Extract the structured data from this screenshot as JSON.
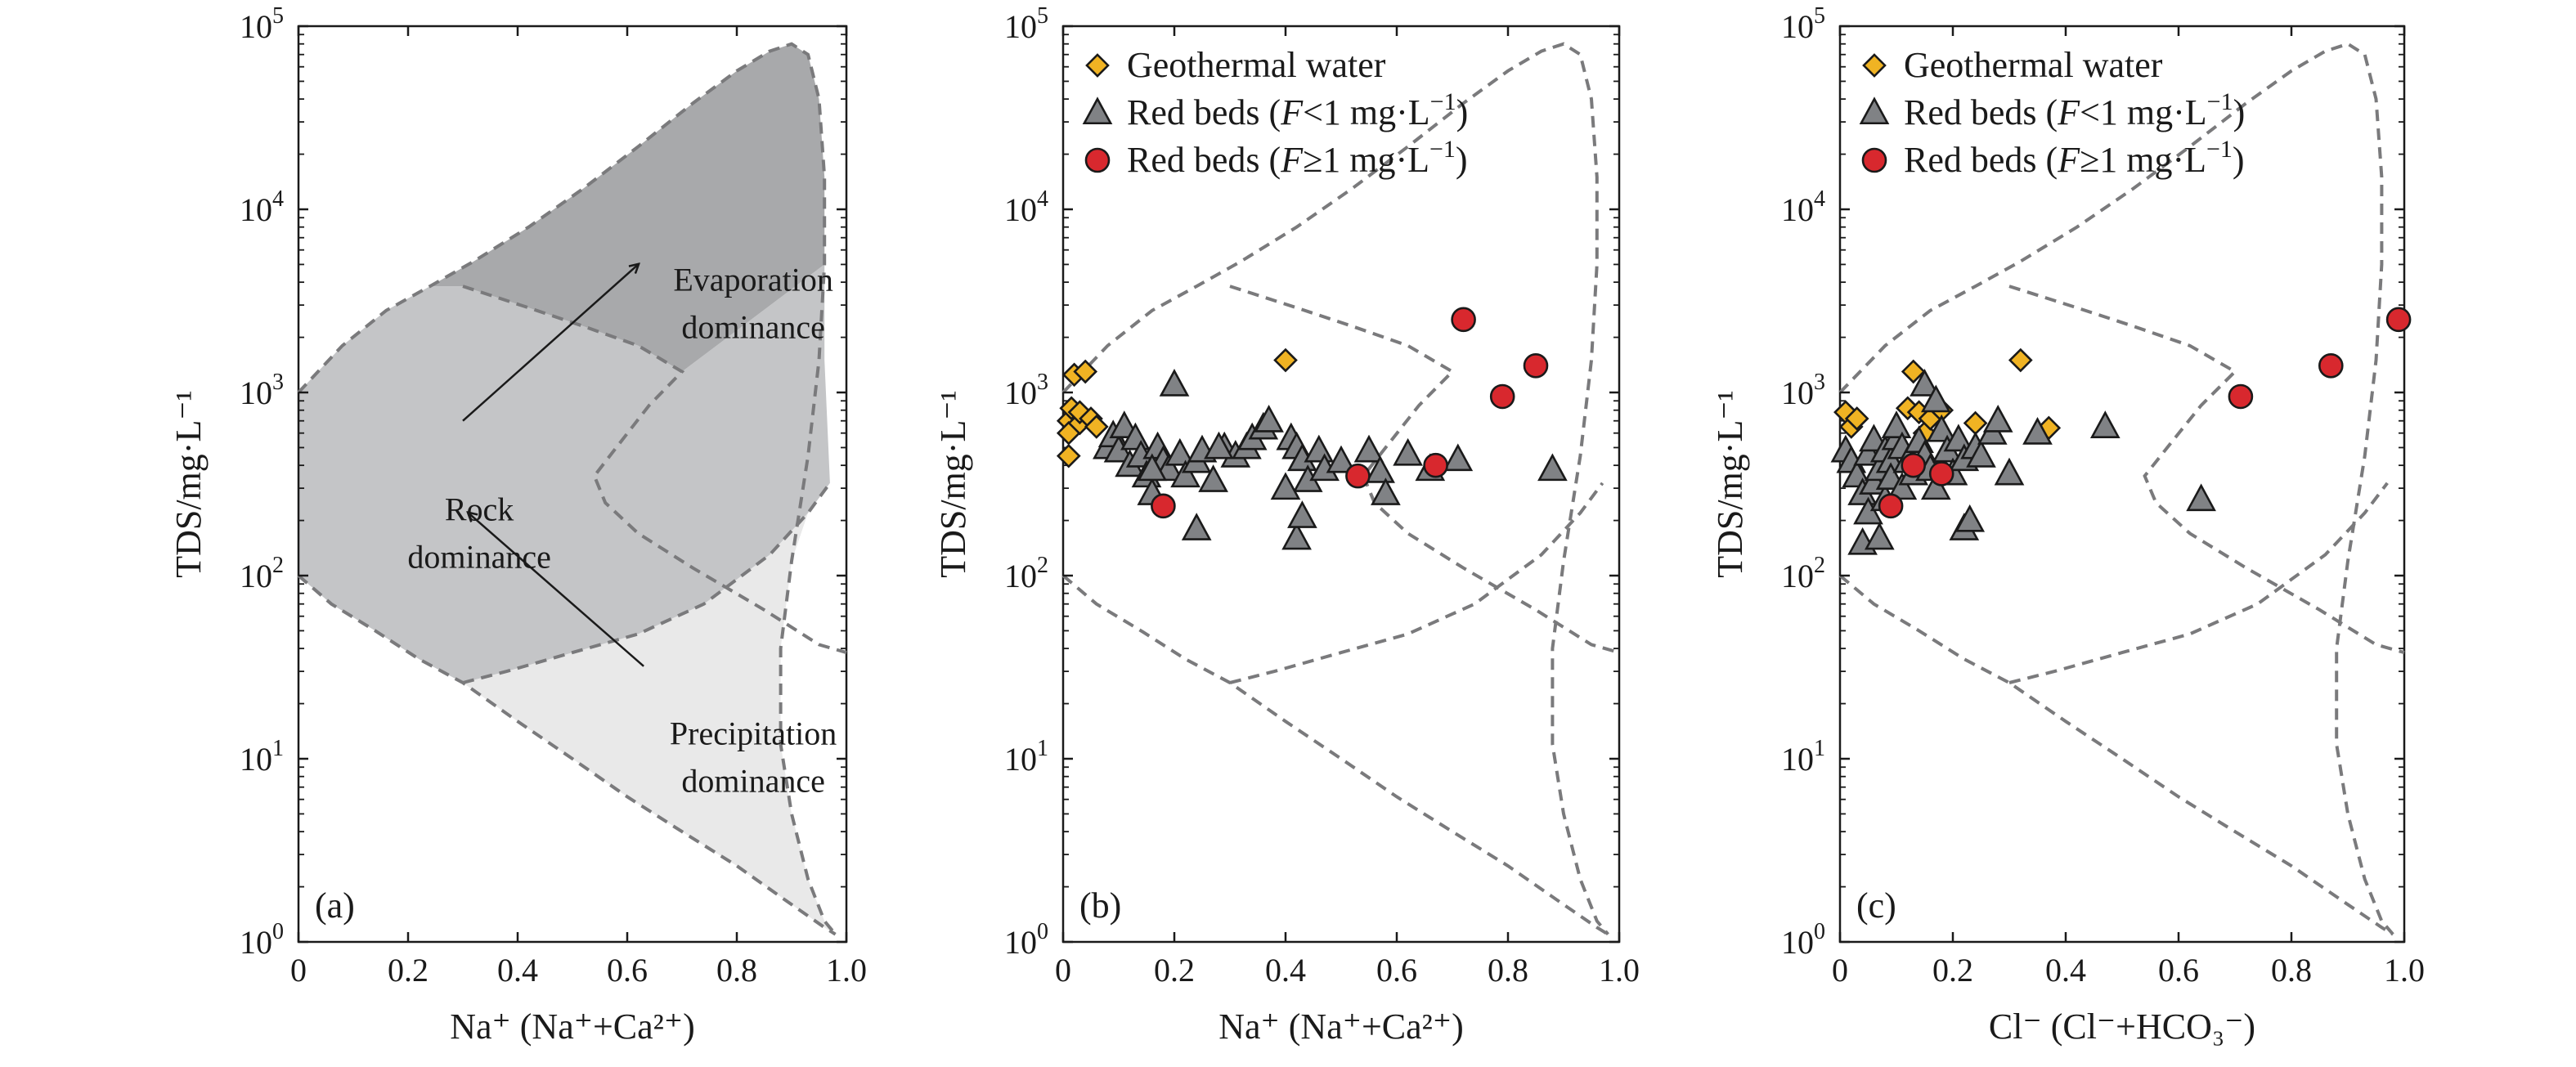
{
  "chart_data": [
    {
      "panel": "a",
      "panel_label": "(a)",
      "type": "area",
      "xlabel": "Na⁺ (Na⁺+Ca²⁺)",
      "ylabel": "TDS/mg·L⁻¹",
      "xlim": [
        0,
        1.0
      ],
      "ylim_log10": [
        0,
        5
      ],
      "x_ticks": [
        "0",
        "0.2",
        "0.4",
        "0.6",
        "0.8",
        "1.0"
      ],
      "y_ticks": [
        {
          "base": "10",
          "exp": "0"
        },
        {
          "base": "10",
          "exp": "1"
        },
        {
          "base": "10",
          "exp": "2"
        },
        {
          "base": "10",
          "exp": "3"
        },
        {
          "base": "10",
          "exp": "4"
        },
        {
          "base": "10",
          "exp": "5"
        }
      ],
      "zones": [
        {
          "lines": [
            "Evaporation",
            "dominance"
          ],
          "fill": "#a8a9ab"
        },
        {
          "lines": [
            "Rock",
            "dominance"
          ],
          "fill": "#c4c5c7"
        },
        {
          "lines": [
            "Precipitation",
            "dominance"
          ],
          "fill": "#e9e9e9"
        }
      ],
      "annotations": [
        {
          "type": "arrow",
          "from": "Rock dominance",
          "to": "Evaporation dominance"
        },
        {
          "type": "arrow",
          "from": "Precipitation dominance",
          "to": "Rock dominance"
        }
      ]
    },
    {
      "panel": "b",
      "panel_label": "(b)",
      "type": "scatter",
      "xlabel": "Na⁺ (Na⁺+Ca²⁺)",
      "ylabel": "TDS/mg·L⁻¹",
      "xlim": [
        0,
        1.0
      ],
      "ylim_log10": [
        0,
        5
      ],
      "x_ticks": [
        "0",
        "0.2",
        "0.4",
        "0.6",
        "0.8",
        "1.0"
      ],
      "legend": "top-left",
      "series": [
        {
          "name": "geo",
          "legend_label": [
            "Geothermal water"
          ],
          "marker": "diamond",
          "color": "#f0b323",
          "points": [
            [
              0.01,
              450
            ],
            [
              0.01,
              700
            ],
            [
              0.01,
              600
            ],
            [
              0.015,
              820
            ],
            [
              0.02,
              1250
            ],
            [
              0.03,
              680
            ],
            [
              0.03,
              780
            ],
            [
              0.04,
              1300
            ],
            [
              0.05,
              720
            ],
            [
              0.06,
              650
            ],
            [
              0.4,
              1500
            ]
          ]
        },
        {
          "name": "rb_low",
          "legend_label": [
            "Red beds (",
            "F",
            "<1 mg·L",
            "−1",
            ")"
          ],
          "marker": "triangle",
          "color": "#808285",
          "points": [
            [
              0.08,
              500
            ],
            [
              0.09,
              580
            ],
            [
              0.1,
              480
            ],
            [
              0.11,
              650
            ],
            [
              0.12,
              400
            ],
            [
              0.13,
              560
            ],
            [
              0.14,
              450
            ],
            [
              0.15,
              350
            ],
            [
              0.16,
              280
            ],
            [
              0.17,
              500
            ],
            [
              0.18,
              420
            ],
            [
              0.19,
              380
            ],
            [
              0.2,
              1100
            ],
            [
              0.21,
              460
            ],
            [
              0.22,
              350
            ],
            [
              0.24,
              420
            ],
            [
              0.25,
              480
            ],
            [
              0.27,
              330
            ],
            [
              0.29,
              500
            ],
            [
              0.31,
              450
            ],
            [
              0.33,
              500
            ],
            [
              0.34,
              560
            ],
            [
              0.36,
              640
            ],
            [
              0.37,
              700
            ],
            [
              0.41,
              560
            ],
            [
              0.42,
              500
            ],
            [
              0.43,
              430
            ],
            [
              0.44,
              330
            ],
            [
              0.46,
              480
            ],
            [
              0.47,
              380
            ],
            [
              0.5,
              420
            ],
            [
              0.55,
              480
            ],
            [
              0.57,
              370
            ],
            [
              0.58,
              280
            ],
            [
              0.62,
              460
            ],
            [
              0.66,
              380
            ],
            [
              0.71,
              430
            ],
            [
              0.88,
              380
            ],
            [
              0.4,
              300
            ],
            [
              0.42,
              160
            ],
            [
              0.43,
              210
            ],
            [
              0.24,
              180
            ],
            [
              0.16,
              380
            ],
            [
              0.28,
              500
            ]
          ]
        },
        {
          "name": "rb_high",
          "legend_label": [
            "Red beds (",
            "F",
            "≥1 mg·L",
            "−1",
            ")"
          ],
          "marker": "circle",
          "color": "#d8282e",
          "points": [
            [
              0.18,
              240
            ],
            [
              0.53,
              350
            ],
            [
              0.67,
              400
            ],
            [
              0.72,
              2500
            ],
            [
              0.79,
              950
            ],
            [
              0.85,
              1400
            ]
          ]
        }
      ]
    },
    {
      "panel": "c",
      "panel_label": "(c)",
      "type": "scatter",
      "xlabel": "Cl⁻ (Cl⁻+HCO₃⁻)",
      "ylabel": "TDS/mg·L⁻¹",
      "xlim": [
        0,
        1.0
      ],
      "ylim_log10": [
        0,
        5
      ],
      "x_ticks": [
        "0",
        "0.2",
        "0.4",
        "0.6",
        "0.8",
        "1.0"
      ],
      "legend": "top-left",
      "series": [
        {
          "name": "geo",
          "legend_label": [
            "Geothermal water"
          ],
          "marker": "diamond",
          "color": "#f0b323",
          "points": [
            [
              0.01,
              780
            ],
            [
              0.02,
              650
            ],
            [
              0.03,
              720
            ],
            [
              0.12,
              820
            ],
            [
              0.13,
              1300
            ],
            [
              0.14,
              780
            ],
            [
              0.15,
              600
            ],
            [
              0.16,
              720
            ],
            [
              0.18,
              800
            ],
            [
              0.24,
              680
            ],
            [
              0.32,
              1500
            ],
            [
              0.37,
              640
            ]
          ]
        },
        {
          "name": "rb_low",
          "legend_label": [
            "Red beds (",
            "F",
            "<1 mg·L",
            "−1",
            ")"
          ],
          "marker": "triangle",
          "color": "#808285",
          "points": [
            [
              0.01,
              480
            ],
            [
              0.02,
              420
            ],
            [
              0.03,
              350
            ],
            [
              0.04,
              280
            ],
            [
              0.04,
              150
            ],
            [
              0.05,
              220
            ],
            [
              0.05,
              460
            ],
            [
              0.06,
              320
            ],
            [
              0.06,
              550
            ],
            [
              0.07,
              380
            ],
            [
              0.07,
              160
            ],
            [
              0.08,
              260
            ],
            [
              0.08,
              480
            ],
            [
              0.09,
              420
            ],
            [
              0.09,
              340
            ],
            [
              0.1,
              560
            ],
            [
              0.1,
              650
            ],
            [
              0.11,
              300
            ],
            [
              0.11,
              500
            ],
            [
              0.12,
              420
            ],
            [
              0.13,
              360
            ],
            [
              0.14,
              540
            ],
            [
              0.15,
              450
            ],
            [
              0.15,
              1100
            ],
            [
              0.16,
              380
            ],
            [
              0.17,
              300
            ],
            [
              0.17,
              900
            ],
            [
              0.18,
              620
            ],
            [
              0.19,
              480
            ],
            [
              0.2,
              360
            ],
            [
              0.21,
              550
            ],
            [
              0.22,
              430
            ],
            [
              0.22,
              180
            ],
            [
              0.23,
              200
            ],
            [
              0.24,
              500
            ],
            [
              0.25,
              450
            ],
            [
              0.27,
              600
            ],
            [
              0.28,
              700
            ],
            [
              0.3,
              360
            ],
            [
              0.35,
              600
            ],
            [
              0.47,
              650
            ],
            [
              0.64,
              260
            ]
          ]
        },
        {
          "name": "rb_high",
          "legend_label": [
            "Red beds (",
            "F",
            "≥1 mg·L",
            "−1",
            ")"
          ],
          "marker": "circle",
          "color": "#d8282e",
          "points": [
            [
              0.09,
              240
            ],
            [
              0.13,
              400
            ],
            [
              0.18,
              360
            ],
            [
              0.71,
              950
            ],
            [
              0.87,
              1400
            ],
            [
              0.99,
              2500
            ]
          ]
        }
      ]
    }
  ]
}
